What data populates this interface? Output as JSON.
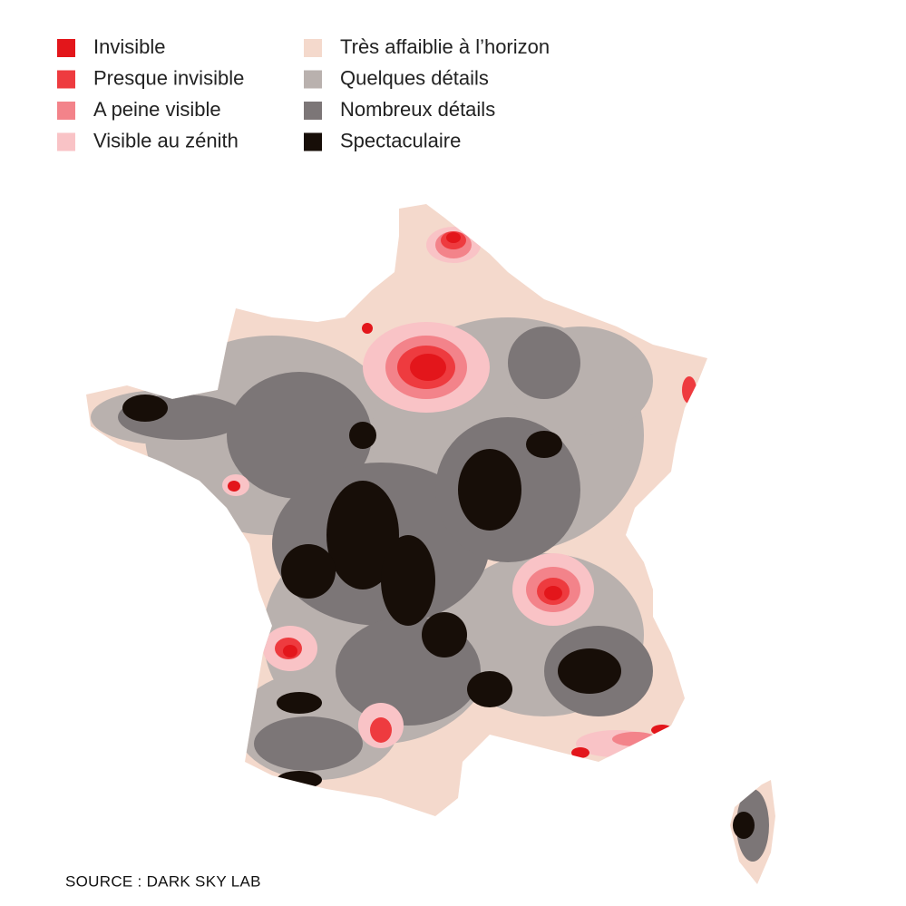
{
  "legend": [
    {
      "label": "Invisible",
      "color": "#e3161b"
    },
    {
      "label": "Presque invisible",
      "color": "#ee3b3f"
    },
    {
      "label": "A peine visible",
      "color": "#f3838a"
    },
    {
      "label": "Visible au zénith",
      "color": "#f9c3c6"
    },
    {
      "label": "Très affaiblie à l’horizon",
      "color": "#f4d9cc"
    },
    {
      "label": "Quelques détails",
      "color": "#b9b1ae"
    },
    {
      "label": "Nombreux détails",
      "color": "#7c7677"
    },
    {
      "label": "Spectaculaire",
      "color": "#170e08"
    }
  ],
  "source": "SOURCE : DARK SKY LAB"
}
